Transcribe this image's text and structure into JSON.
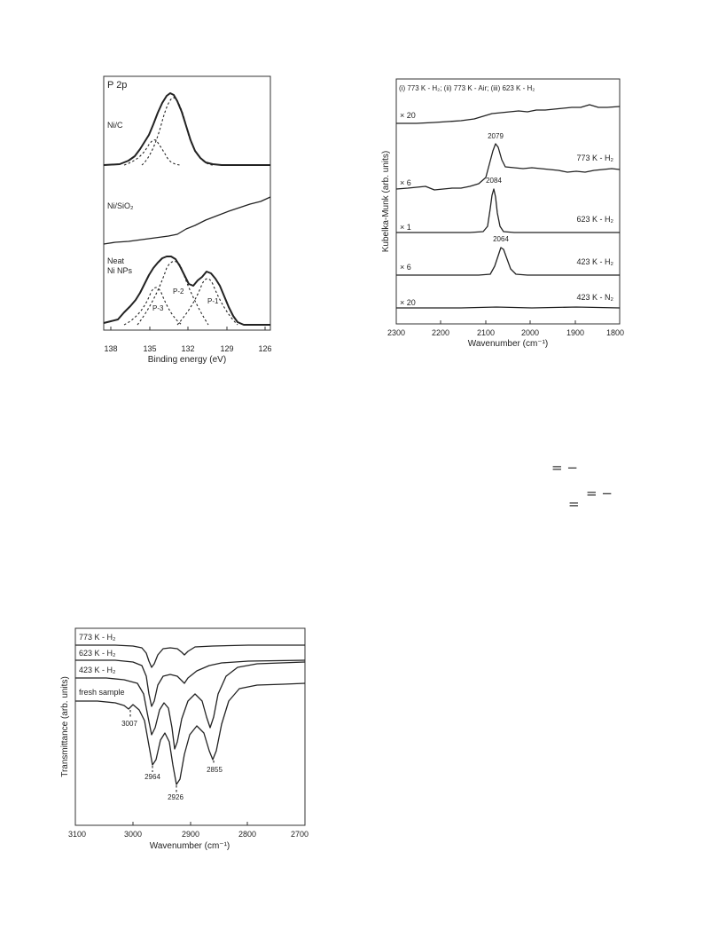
{
  "chart_data": [
    {
      "type": "line",
      "panel_title": "P 2p",
      "xlabel": "Binding energy (eV)",
      "xlim": [
        139,
        125
      ],
      "x_reversed": true,
      "x_ticks": [
        138,
        135,
        132,
        129,
        126
      ],
      "series": [
        {
          "name": "Ni/C",
          "x": [
            139,
            137.5,
            136.5,
            135.8,
            135,
            134.5,
            134,
            133.5,
            133,
            132.5,
            132,
            131.5,
            131,
            130.5,
            130,
            129.5,
            129,
            128,
            127,
            125
          ],
          "y": [
            0.0,
            0.02,
            0.1,
            0.22,
            0.38,
            0.55,
            0.78,
            0.95,
            1.0,
            0.92,
            0.74,
            0.52,
            0.32,
            0.16,
            0.06,
            0.02,
            0.0,
            0.0,
            0.0,
            0.0
          ]
        },
        {
          "name": "Ni/SiO2",
          "x": [
            139,
            137,
            135,
            133,
            131,
            129,
            127,
            125
          ],
          "y": [
            0.05,
            0.04,
            0.08,
            0.18,
            0.38,
            0.62,
            0.88,
            1.0
          ]
        },
        {
          "name": "Neat\nNi NPs",
          "x": [
            139,
            138,
            137,
            136,
            135.5,
            135,
            134,
            133.5,
            133,
            132.5,
            132,
            131.5,
            131,
            130.5,
            130,
            129.5,
            129,
            128.5,
            128,
            127.5,
            127,
            125
          ],
          "y": [
            0.0,
            0.05,
            0.12,
            0.28,
            0.42,
            0.55,
            0.8,
            0.95,
            1.0,
            0.93,
            0.78,
            0.72,
            0.8,
            0.88,
            0.8,
            0.55,
            0.25,
            0.08,
            0.02,
            0.0,
            0.0,
            0.0
          ]
        }
      ],
      "component_labels": [
        "P-1",
        "P-2",
        "P-3"
      ]
    },
    {
      "type": "line",
      "title": "(i) 773 K - H2; (ii) 773 K - Air; (iii) 623 K - H2",
      "xlabel": "Wavenumber (cm⁻¹)",
      "ylabel": "Kubelka-Munk (arb. units)",
      "xlim": [
        2300,
        1800
      ],
      "x_reversed": true,
      "x_ticks": [
        2300,
        2200,
        2100,
        2000,
        1900,
        1800
      ],
      "series": [
        {
          "name": "(i) 773 K - H2; (ii) 773 K - Air; (iii) 623 K - H2",
          "factor": "× 20",
          "peak": null
        },
        {
          "name": "773 K - H2",
          "factor": "× 6",
          "peak": 2079
        },
        {
          "name": "623 K - H2",
          "factor": "× 1",
          "peak": 2084
        },
        {
          "name": "423 K - H2",
          "factor": "× 6",
          "peak": 2064
        },
        {
          "name": "423 K - N2",
          "factor": "× 20",
          "peak": null
        }
      ]
    },
    {
      "type": "line",
      "xlabel": "Wavenumber (cm⁻¹)",
      "ylabel": "Transmittance (arb. units)",
      "xlim": [
        3100,
        2700
      ],
      "x_reversed": true,
      "x_ticks": [
        3100,
        3000,
        2900,
        2800,
        2700
      ],
      "series": [
        {
          "name": "773 K - H2"
        },
        {
          "name": "623 K - H2"
        },
        {
          "name": "423 K - H2"
        },
        {
          "name": "fresh sample"
        }
      ],
      "peaks": [
        3007,
        2964,
        2926,
        2855
      ]
    }
  ],
  "xps": {
    "title": "P 2p",
    "labels": {
      "nic": "Ni/C",
      "nisio": "Ni/SiO₂",
      "neat1": "Neat",
      "neat2": "Ni NPs"
    },
    "components": {
      "p1": "P-1",
      "p2": "P-2",
      "p3": "P-3"
    },
    "ticks": [
      "138",
      "135",
      "132",
      "129",
      "126"
    ],
    "xlabel": "Binding energy (eV)"
  },
  "drifts": {
    "title": "(i) 773 K - H₂; (ii) 773 K - Air; (iii) 623 K - H₂",
    "ylabel": "Kubelka-Munk (arb. units)",
    "xlabel": "Wavenumber (cm⁻¹)",
    "ticks": [
      "2300",
      "2200",
      "2100",
      "2000",
      "1900",
      "1800"
    ],
    "factors": [
      "× 20",
      "× 6",
      "× 1",
      "× 6",
      "× 20"
    ],
    "traces": {
      "t2": "773 K - H₂",
      "t3": "623 K - H₂",
      "t4": "423 K - H₂",
      "t5": "423 K - N₂"
    },
    "peaks": {
      "p1": "2079",
      "p2": "2084",
      "p3": "2064"
    }
  },
  "ftir": {
    "ylabel": "Transmittance (arb. units)",
    "xlabel": "Wavenumber (cm⁻¹)",
    "ticks": [
      "3100",
      "3000",
      "2900",
      "2800",
      "2700"
    ],
    "traces": {
      "t1": "773 K - H₂",
      "t2": "623 K - H₂",
      "t3": "423 K - H₂",
      "t4": "fresh sample"
    },
    "peaks": {
      "p1": "3007",
      "p2": "2964",
      "p3": "2926",
      "p4": "2855"
    }
  },
  "fragments": {
    "f1": "= −",
    "f2": "= −",
    "f3": "="
  }
}
